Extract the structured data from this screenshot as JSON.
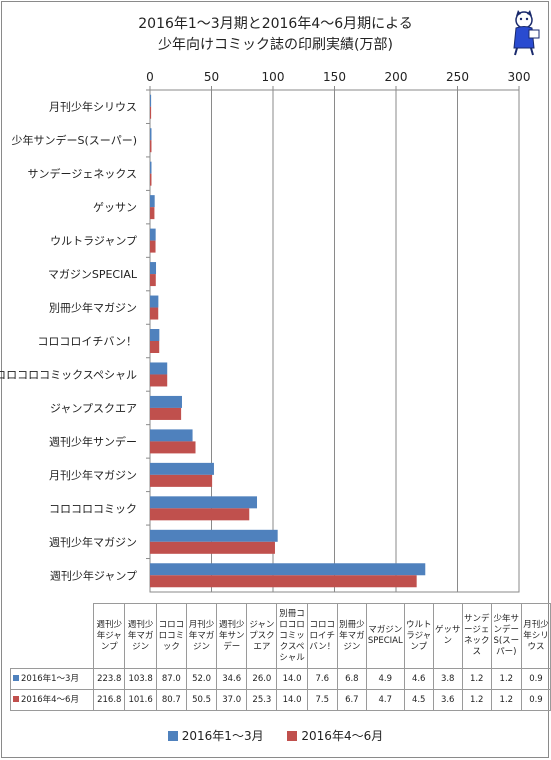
{
  "chart_data": {
    "type": "bar",
    "orientation": "horizontal",
    "title_lines": [
      "2016年1～3月期と2016年4～6月期による",
      "少年向けコミック誌の印刷実績(万部)"
    ],
    "categories": [
      "月刊少年シリウス",
      "少年サンデーS(スーパー)",
      "サンデージェネックス",
      "ゲッサン",
      "ウルトラジャンプ",
      "マガジンSPECIAL",
      "別冊少年マガジン",
      "コロコロイチバン！",
      "別冊コロコロコミックスペシャル",
      "ジャンプスクエア",
      "週刊少年サンデー",
      "月刊少年マガジン",
      "コロコロコミック",
      "週刊少年マガジン",
      "週刊少年ジャンプ"
    ],
    "series": [
      {
        "name": "2016年1～3月",
        "color": "#4f81bd",
        "values": [
          0.9,
          1.2,
          1.2,
          3.8,
          4.6,
          4.9,
          6.8,
          7.6,
          14.0,
          26.0,
          34.6,
          52.0,
          87.0,
          103.8,
          223.8
        ]
      },
      {
        "name": "2016年4～6月",
        "color": "#c0504d",
        "values": [
          0.9,
          1.2,
          1.2,
          3.6,
          4.5,
          4.7,
          6.7,
          7.5,
          14.0,
          25.3,
          37.0,
          50.5,
          80.7,
          101.6,
          216.8
        ]
      }
    ],
    "xlim": [
      0,
      300
    ],
    "xticks": [
      "0",
      "50",
      "100",
      "150",
      "200",
      "250",
      "300"
    ],
    "grid": true,
    "legend_position": "bottom"
  },
  "table": {
    "headers": [
      "週刊少年ジャンプ",
      "週刊少年マガジン",
      "コロコロコミック",
      "月刊少年マガジン",
      "週刊少年サンデー",
      "ジャンプスクエア",
      "別冊コロコロコミックスペシャル",
      "コロコロイチバン！",
      "別冊少年マガジン",
      "マガジンSPECIAL",
      "ウルトラジャンプ",
      "ゲッサン",
      "サンデージェネックス",
      "少年サンデーS(スーパー)",
      "月刊少年シリウス"
    ],
    "rows": [
      {
        "label": "2016年1～3月",
        "color": "#4f81bd",
        "values": [
          "223.8",
          "103.8",
          "87.0",
          "52.0",
          "34.6",
          "26.0",
          "14.0",
          "7.6",
          "6.8",
          "4.9",
          "4.6",
          "3.8",
          "1.2",
          "1.2",
          "0.9"
        ]
      },
      {
        "label": "2016年4～6月",
        "color": "#c0504d",
        "values": [
          "216.8",
          "101.6",
          "80.7",
          "50.5",
          "37.0",
          "25.3",
          "14.0",
          "7.5",
          "6.7",
          "4.7",
          "4.5",
          "3.6",
          "1.2",
          "1.2",
          "0.9"
        ]
      }
    ]
  }
}
